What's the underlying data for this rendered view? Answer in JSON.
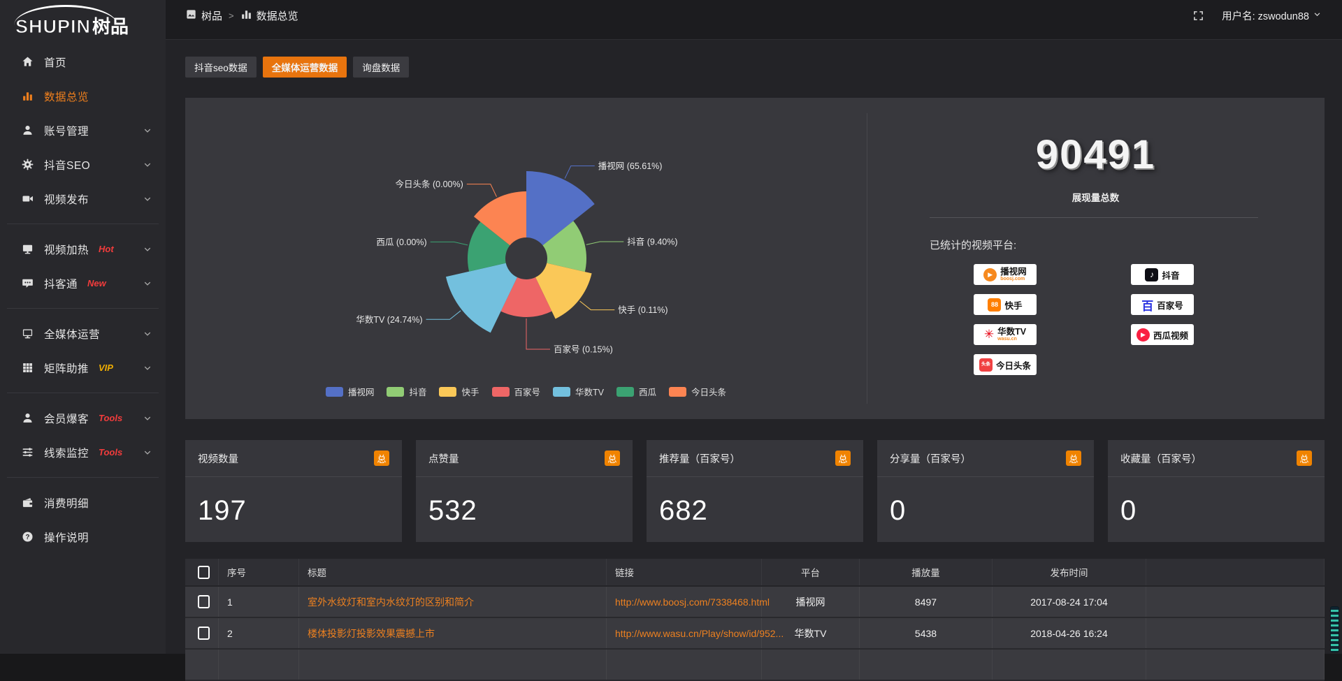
{
  "topbar": {
    "breadcrumb": [
      {
        "label": "树品"
      },
      {
        "label": "数据总览"
      }
    ],
    "separator": ">",
    "username": "用户名: zswodun88",
    "icons": [
      "app-icon",
      "bars-icon",
      "fullscreen-icon",
      "chevron-down-icon"
    ]
  },
  "sidebar": {
    "logo_main": "SHUPIN",
    "logo_sub": "树品",
    "groups": [
      {
        "items": [
          {
            "icon": "home",
            "label": "首页"
          },
          {
            "icon": "bars",
            "label": "数据总览",
            "active": true
          },
          {
            "icon": "user",
            "label": "账号管理",
            "chevron": true
          },
          {
            "icon": "gear",
            "label": "抖音SEO",
            "chevron": true
          },
          {
            "icon": "video",
            "label": "视频发布",
            "chevron": true
          }
        ]
      },
      {
        "items": [
          {
            "icon": "screen",
            "label": "视频加热",
            "tag": "Hot",
            "tag_color": "#f23c3c",
            "chevron": true
          },
          {
            "icon": "chat",
            "label": "抖客通",
            "tag": "New",
            "tag_color": "#f23c3c",
            "chevron": true
          }
        ]
      },
      {
        "items": [
          {
            "icon": "monitor",
            "label": "全媒体运营",
            "chevron": true
          },
          {
            "icon": "grid",
            "label": "矩阵助推",
            "tag": "VIP",
            "tag_color": "#efad02",
            "chevron": true
          }
        ]
      },
      {
        "items": [
          {
            "icon": "user",
            "label": "会员爆客",
            "tag": "Tools",
            "tag_color": "#f23c3c",
            "chevron": true
          },
          {
            "icon": "sliders",
            "label": "线索监控",
            "tag": "Tools",
            "tag_color": "#f23c3c",
            "chevron": true
          }
        ]
      },
      {
        "items": [
          {
            "icon": "wallet",
            "label": "消费明细"
          },
          {
            "icon": "question",
            "label": "操作说明"
          }
        ]
      }
    ]
  },
  "tabs": [
    {
      "label": "抖音seo数据",
      "active": false
    },
    {
      "label": "全媒体运营数据",
      "active": true
    },
    {
      "label": "询盘数据",
      "active": false
    }
  ],
  "chart_data": {
    "type": "pie",
    "variant": "nightingale-rose-donut",
    "equal_angles": true,
    "start_angle_deg": 0,
    "inner_radius_px": 30,
    "legend_position": "bottom",
    "series": [
      {
        "name": "播视网",
        "percent": 65.61,
        "label": "播视网 (65.61%)",
        "color": "#5470c6",
        "radius_px": 125
      },
      {
        "name": "抖音",
        "percent": 9.4,
        "label": "抖音 (9.40%)",
        "color": "#91cc75",
        "radius_px": 86
      },
      {
        "name": "快手",
        "percent": 0.11,
        "label": "快手 (0.11%)",
        "color": "#fac858",
        "radius_px": 96
      },
      {
        "name": "百家号",
        "percent": 0.15,
        "label": "百家号 (0.15%)",
        "color": "#ee6666",
        "radius_px": 84
      },
      {
        "name": "华数TV",
        "percent": 24.74,
        "label": "华数TV (24.74%)",
        "color": "#73c0de",
        "radius_px": 118
      },
      {
        "name": "西瓜",
        "percent": 0.0,
        "label": "西瓜 (0.00%)",
        "color": "#3ba272",
        "radius_px": 84
      },
      {
        "name": "今日头条",
        "percent": 0.0,
        "label": "今日头条 (0.00%)",
        "color": "#fc8452",
        "radius_px": 96
      }
    ],
    "legend": [
      "播视网",
      "抖音",
      "快手",
      "百家号",
      "华数TV",
      "西瓜",
      "今日头条"
    ]
  },
  "summary": {
    "total_value": "90491",
    "total_label": "展现量总数",
    "platforms_title": "已统计的视频平台:",
    "platforms": [
      {
        "icon": "boosj",
        "name": "播视网",
        "sub": "boosj.com"
      },
      {
        "icon": "douyin",
        "name": "抖音"
      },
      {
        "icon": "kuaishou",
        "name": "快手"
      },
      {
        "icon": "baijiahao",
        "name": "百家号"
      },
      {
        "icon": "wasu",
        "name": "华数TV",
        "sub": "wasu.cn"
      },
      {
        "icon": "xigua",
        "name": "西瓜视频"
      },
      {
        "icon": "toutiao",
        "name": "今日头条"
      }
    ]
  },
  "stat_cards": [
    {
      "title": "视频数量",
      "badge": "总",
      "value": "197"
    },
    {
      "title": "点赞量",
      "badge": "总",
      "value": "532"
    },
    {
      "title": "推荐量（百家号）",
      "badge": "总",
      "value": "682"
    },
    {
      "title": "分享量（百家号）",
      "badge": "总",
      "value": "0"
    },
    {
      "title": "收藏量（百家号）",
      "badge": "总",
      "value": "0"
    }
  ],
  "table": {
    "headers": [
      "",
      "序号",
      "标题",
      "链接",
      "平台",
      "播放量",
      "发布时间",
      ""
    ],
    "rows": [
      {
        "no": "1",
        "title": "室外水纹灯和室内水纹灯的区别和简介",
        "link": "http://www.boosj.com/7338468.html",
        "platform": "播视网",
        "plays": "8497",
        "time": "2017-08-24 17:04"
      },
      {
        "no": "2",
        "title": "楼体投影灯投影效果震撼上市",
        "link": "http://www.wasu.cn/Play/show/id/952...",
        "platform": "华数TV",
        "plays": "5438",
        "time": "2018-04-26 16:24"
      },
      {
        "no": "",
        "title": "",
        "link": "",
        "platform": "",
        "plays": "",
        "time": ""
      }
    ]
  },
  "colors": {
    "accent_tab": "#e8740e",
    "badge": "#f08300",
    "link": "#ec8020",
    "sidebar_active": "#ee7f1d",
    "tag_hot": "#f23c3c",
    "tag_vip": "#efad02"
  }
}
